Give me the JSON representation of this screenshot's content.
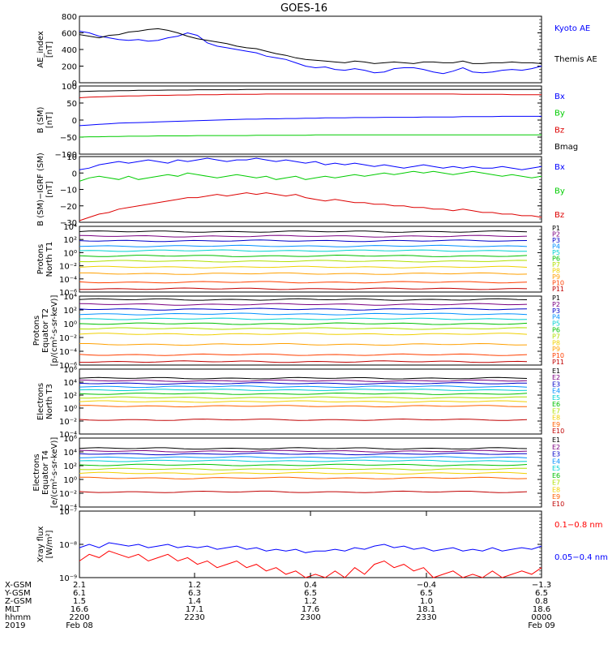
{
  "title": "GOES-16",
  "chart_data": [
    {
      "type": "line",
      "ylabel": "AE_index\n[nT]",
      "ylim": [
        0,
        800
      ],
      "yticks": [
        "800",
        "600",
        "400",
        "200",
        "0"
      ],
      "series": [
        {
          "name": "Kyoto AE",
          "color": "#0000ff",
          "values": [
            620,
            600,
            560,
            540,
            520,
            510,
            520,
            500,
            510,
            540,
            560,
            600,
            570,
            480,
            440,
            420,
            400,
            380,
            360,
            320,
            300,
            280,
            240,
            200,
            180,
            190,
            160,
            150,
            170,
            150,
            120,
            130,
            170,
            180,
            180,
            160,
            130,
            110,
            140,
            180,
            130,
            120,
            130,
            150,
            160,
            150,
            170,
            200
          ]
        },
        {
          "name": "Themis AE",
          "color": "#000000",
          "values": [
            580,
            560,
            540,
            570,
            580,
            610,
            620,
            640,
            650,
            630,
            600,
            560,
            530,
            510,
            490,
            470,
            440,
            420,
            410,
            380,
            350,
            330,
            300,
            280,
            270,
            260,
            250,
            240,
            260,
            250,
            230,
            240,
            250,
            240,
            230,
            250,
            250,
            240,
            240,
            260,
            230,
            230,
            240,
            240,
            250,
            240,
            240,
            230
          ]
        }
      ]
    },
    {
      "type": "line",
      "ylabel": "B (SM)\n[nT]",
      "ylim": [
        -110,
        110
      ],
      "yticks": [
        "100",
        "50",
        "0",
        "−50",
        "−100"
      ],
      "series": [
        {
          "name": "Bx",
          "color": "#0000ff",
          "values": [
            -18,
            -16,
            -14,
            -12,
            -10,
            -9,
            -8,
            -7,
            -6,
            -5,
            -4,
            -3,
            -2,
            -1,
            0,
            1,
            2,
            3,
            3,
            4,
            4,
            5,
            5,
            6,
            6,
            7,
            7,
            7,
            8,
            8,
            8,
            9,
            9,
            9,
            9,
            10,
            10,
            10,
            10,
            11,
            11,
            11,
            11,
            12,
            12,
            12,
            12,
            12
          ]
        },
        {
          "name": "By",
          "color": "#00cc00",
          "values": [
            -55,
            -54,
            -54,
            -53,
            -53,
            -52,
            -52,
            -52,
            -51,
            -51,
            -51,
            -51,
            -50,
            -50,
            -50,
            -50,
            -50,
            -50,
            -49,
            -49,
            -49,
            -49,
            -49,
            -49,
            -48,
            -48,
            -48,
            -48,
            -48,
            -48,
            -48,
            -48,
            -48,
            -48,
            -48,
            -48,
            -48,
            -48,
            -48,
            -48,
            -48,
            -48,
            -48,
            -48,
            -48,
            -48,
            -48,
            -48
          ]
        },
        {
          "name": "Bz",
          "color": "#dd0000",
          "values": [
            72,
            74,
            75,
            76,
            77,
            78,
            78,
            79,
            80,
            80,
            81,
            81,
            82,
            82,
            82,
            83,
            83,
            83,
            83,
            84,
            84,
            84,
            84,
            84,
            84,
            84,
            84,
            84,
            84,
            84,
            84,
            84,
            84,
            84,
            84,
            84,
            84,
            84,
            84,
            83,
            83,
            83,
            83,
            83,
            82,
            82,
            82,
            82
          ]
        },
        {
          "name": "Bmag",
          "color": "#000000",
          "values": [
            92,
            93,
            94,
            94,
            95,
            95,
            96,
            96,
            96,
            97,
            97,
            97,
            98,
            98,
            98,
            98,
            98,
            99,
            99,
            99,
            99,
            99,
            99,
            99,
            99,
            99,
            99,
            99,
            99,
            99,
            99,
            99,
            99,
            99,
            99,
            99,
            99,
            99,
            99,
            99,
            99,
            99,
            99,
            99,
            99,
            99,
            99,
            99
          ]
        }
      ]
    },
    {
      "type": "line",
      "ylabel": "B (SM)−IGRF (SM)\n[nT]",
      "ylim": [
        -30,
        10
      ],
      "yticks": [
        "10",
        "0",
        "−10",
        "−20",
        "−30"
      ],
      "series": [
        {
          "name": "Bx",
          "color": "#0000ff",
          "values": [
            2,
            3,
            5,
            6,
            7,
            6,
            7,
            8,
            7,
            6,
            8,
            7,
            8,
            9,
            8,
            7,
            8,
            8,
            9,
            8,
            7,
            8,
            7,
            6,
            7,
            5,
            6,
            5,
            6,
            5,
            4,
            5,
            4,
            3,
            4,
            5,
            4,
            3,
            4,
            3,
            4,
            3,
            3,
            4,
            3,
            2,
            3,
            4
          ]
        },
        {
          "name": "By",
          "color": "#00cc00",
          "values": [
            -5,
            -3,
            -2,
            -3,
            -4,
            -2,
            -4,
            -3,
            -2,
            -1,
            -2,
            0,
            -1,
            -2,
            -3,
            -2,
            -1,
            -2,
            -3,
            -2,
            -4,
            -3,
            -2,
            -4,
            -3,
            -2,
            -3,
            -2,
            -1,
            -2,
            -1,
            0,
            -1,
            0,
            1,
            0,
            1,
            0,
            -1,
            0,
            1,
            0,
            -1,
            -2,
            -1,
            -2,
            -3,
            -2
          ]
        },
        {
          "name": "Bz",
          "color": "#dd0000",
          "values": [
            -29,
            -27,
            -25,
            -24,
            -22,
            -21,
            -20,
            -19,
            -18,
            -17,
            -16,
            -15,
            -15,
            -14,
            -13,
            -14,
            -13,
            -12,
            -13,
            -12,
            -13,
            -14,
            -13,
            -15,
            -16,
            -17,
            -16,
            -17,
            -18,
            -18,
            -19,
            -19,
            -20,
            -20,
            -21,
            -21,
            -22,
            -22,
            -23,
            -22,
            -23,
            -24,
            -24,
            -25,
            -25,
            -26,
            -26,
            -27
          ]
        }
      ]
    },
    {
      "type": "line",
      "ylabel": "Protons\nNorth T1",
      "ylog": true,
      "ylim": [
        -6,
        4
      ],
      "yticks": [
        "10⁴",
        "10²",
        "10⁰",
        "10⁻²",
        "10⁻⁴",
        "10⁻⁶"
      ],
      "series": [
        {
          "name": "P1",
          "color": "#000000",
          "level": 3.2
        },
        {
          "name": "P2",
          "color": "#7a0080",
          "level": 2.5
        },
        {
          "name": "P3",
          "color": "#0000c8",
          "level": 1.8
        },
        {
          "name": "P4",
          "color": "#0090ff",
          "level": 1.0
        },
        {
          "name": "P5",
          "color": "#00d0d0",
          "level": 0.3
        },
        {
          "name": "P6",
          "color": "#00c000",
          "level": -0.5
        },
        {
          "name": "P7",
          "color": "#b0e000",
          "level": -1.3
        },
        {
          "name": "P8",
          "color": "#f0d000",
          "level": -2.2
        },
        {
          "name": "P9",
          "color": "#ffa000",
          "level": -3.2
        },
        {
          "name": "P10",
          "color": "#ff4000",
          "level": -4.5
        },
        {
          "name": "P11",
          "color": "#c00000",
          "level": -5.5
        }
      ]
    },
    {
      "type": "line",
      "ylabel": "Protons\nEquator T2\n[p/(cm²-s-sr-keV)]",
      "ylog": true,
      "ylim": [
        -6,
        4
      ],
      "yticks": [
        "10⁴",
        "10²",
        "10⁰",
        "10⁻²",
        "10⁻⁴",
        "10⁻⁶"
      ],
      "series": [
        {
          "name": "P1",
          "color": "#000000",
          "level": 3.5
        },
        {
          "name": "P2",
          "color": "#7a0080",
          "level": 2.8
        },
        {
          "name": "P3",
          "color": "#0000c8",
          "level": 2.1
        },
        {
          "name": "P4",
          "color": "#0090ff",
          "level": 1.4
        },
        {
          "name": "P5",
          "color": "#00d0d0",
          "level": 0.7
        },
        {
          "name": "P6",
          "color": "#00c000",
          "level": 0.0
        },
        {
          "name": "P7",
          "color": "#b0e000",
          "level": -0.7
        },
        {
          "name": "P8",
          "color": "#f0d000",
          "level": -1.5
        },
        {
          "name": "P9",
          "color": "#ffa000",
          "level": -3.0
        },
        {
          "name": "P10",
          "color": "#ff4000",
          "level": -4.5
        },
        {
          "name": "P11",
          "color": "#c00000",
          "level": -5.5
        }
      ]
    },
    {
      "type": "line",
      "ylabel": "Electrons\nNorth T3",
      "ylog": true,
      "ylim": [
        -4,
        6
      ],
      "yticks": [
        "10⁶",
        "10⁴",
        "10²",
        "10⁰",
        "10⁻²",
        "10⁻⁴"
      ],
      "series": [
        {
          "name": "E1",
          "color": "#000000",
          "level": 4.6
        },
        {
          "name": "E2",
          "color": "#7a0080",
          "level": 4.2
        },
        {
          "name": "E3",
          "color": "#0000c8",
          "level": 3.8
        },
        {
          "name": "E4",
          "color": "#0090ff",
          "level": 3.3
        },
        {
          "name": "E5",
          "color": "#00d0d0",
          "level": 2.8
        },
        {
          "name": "E6",
          "color": "#00c000",
          "level": 2.2
        },
        {
          "name": "E7",
          "color": "#b0e000",
          "level": 1.6
        },
        {
          "name": "E8",
          "color": "#f0d000",
          "level": 1.0
        },
        {
          "name": "E9",
          "color": "#ff6000",
          "level": 0.3
        },
        {
          "name": "E10",
          "color": "#c00000",
          "level": -1.8
        }
      ]
    },
    {
      "type": "line",
      "ylabel": "Electrons\nEquator T4\n[e/(cm²-s-sr-keV)]",
      "ylog": true,
      "ylim": [
        -4,
        6
      ],
      "yticks": [
        "10⁶",
        "10⁴",
        "10²",
        "10⁰",
        "10⁻²",
        "10⁻⁴"
      ],
      "series": [
        {
          "name": "E1",
          "color": "#000000",
          "level": 4.5
        },
        {
          "name": "E2",
          "color": "#7a0080",
          "level": 4.1
        },
        {
          "name": "E3",
          "color": "#0000c8",
          "level": 3.7
        },
        {
          "name": "E4",
          "color": "#0090ff",
          "level": 3.2
        },
        {
          "name": "E5",
          "color": "#00d0d0",
          "level": 2.7
        },
        {
          "name": "E6",
          "color": "#00c000",
          "level": 2.1
        },
        {
          "name": "E7",
          "color": "#b0e000",
          "level": 1.5
        },
        {
          "name": "E8",
          "color": "#f0d000",
          "level": 0.9
        },
        {
          "name": "E9",
          "color": "#ff6000",
          "level": 0.2
        },
        {
          "name": "E10",
          "color": "#c00000",
          "level": -1.8
        }
      ]
    },
    {
      "type": "line",
      "ylabel": "Xray flux\n[W/m²]",
      "ylog": true,
      "ylim": [
        -9,
        -7
      ],
      "yticks": [
        "10⁻⁷",
        "10⁻⁸",
        "10⁻⁹"
      ],
      "series": [
        {
          "name": "0.1−0.8 nm",
          "color": "#ff0000",
          "values": [
            -8.5,
            -8.3,
            -8.4,
            -8.2,
            -8.3,
            -8.4,
            -8.3,
            -8.5,
            -8.4,
            -8.3,
            -8.5,
            -8.4,
            -8.6,
            -8.5,
            -8.7,
            -8.6,
            -8.5,
            -8.7,
            -8.6,
            -8.8,
            -8.7,
            -8.9,
            -8.8,
            -9.0,
            -8.9,
            -9.0,
            -8.8,
            -9.0,
            -8.7,
            -8.9,
            -8.6,
            -8.5,
            -8.7,
            -8.6,
            -8.8,
            -8.7,
            -9.0,
            -8.9,
            -8.8,
            -9.0,
            -8.9,
            -9.0,
            -8.8,
            -9.0,
            -8.9,
            -8.8,
            -8.9,
            -8.7
          ]
        },
        {
          "name": "0.05−0.4 nm",
          "color": "#0000ff",
          "values": [
            -8.1,
            -8.0,
            -8.1,
            -7.95,
            -8.0,
            -8.05,
            -8.0,
            -8.1,
            -8.05,
            -8.0,
            -8.1,
            -8.05,
            -8.1,
            -8.05,
            -8.15,
            -8.1,
            -8.05,
            -8.15,
            -8.1,
            -8.2,
            -8.15,
            -8.2,
            -8.15,
            -8.25,
            -8.2,
            -8.2,
            -8.15,
            -8.2,
            -8.1,
            -8.15,
            -8.05,
            -8.0,
            -8.1,
            -8.05,
            -8.15,
            -8.1,
            -8.2,
            -8.15,
            -8.1,
            -8.2,
            -8.15,
            -8.2,
            -8.1,
            -8.2,
            -8.15,
            -8.1,
            -8.15,
            -8.05
          ]
        }
      ]
    }
  ],
  "time_axis": {
    "rows": [
      {
        "label": "X-GSM",
        "values": [
          "2.1",
          "1.2",
          "0.4",
          "−0.4",
          "−1.3"
        ]
      },
      {
        "label": "Y-GSM",
        "values": [
          "6.1",
          "6.3",
          "6.5",
          "6.5",
          "6.5"
        ]
      },
      {
        "label": "Z-GSM",
        "values": [
          "1.5",
          "1.4",
          "1.2",
          "1.0",
          "0.8"
        ]
      },
      {
        "label": "MLT",
        "values": [
          "16.6",
          "17.1",
          "17.6",
          "18.1",
          "18.6"
        ]
      },
      {
        "label": "hhmm",
        "values": [
          "2200",
          "2230",
          "2300",
          "2330",
          "0000"
        ]
      },
      {
        "label": "2019",
        "values": [
          "Feb 08",
          "",
          "",
          "",
          "Feb 09"
        ]
      }
    ]
  }
}
